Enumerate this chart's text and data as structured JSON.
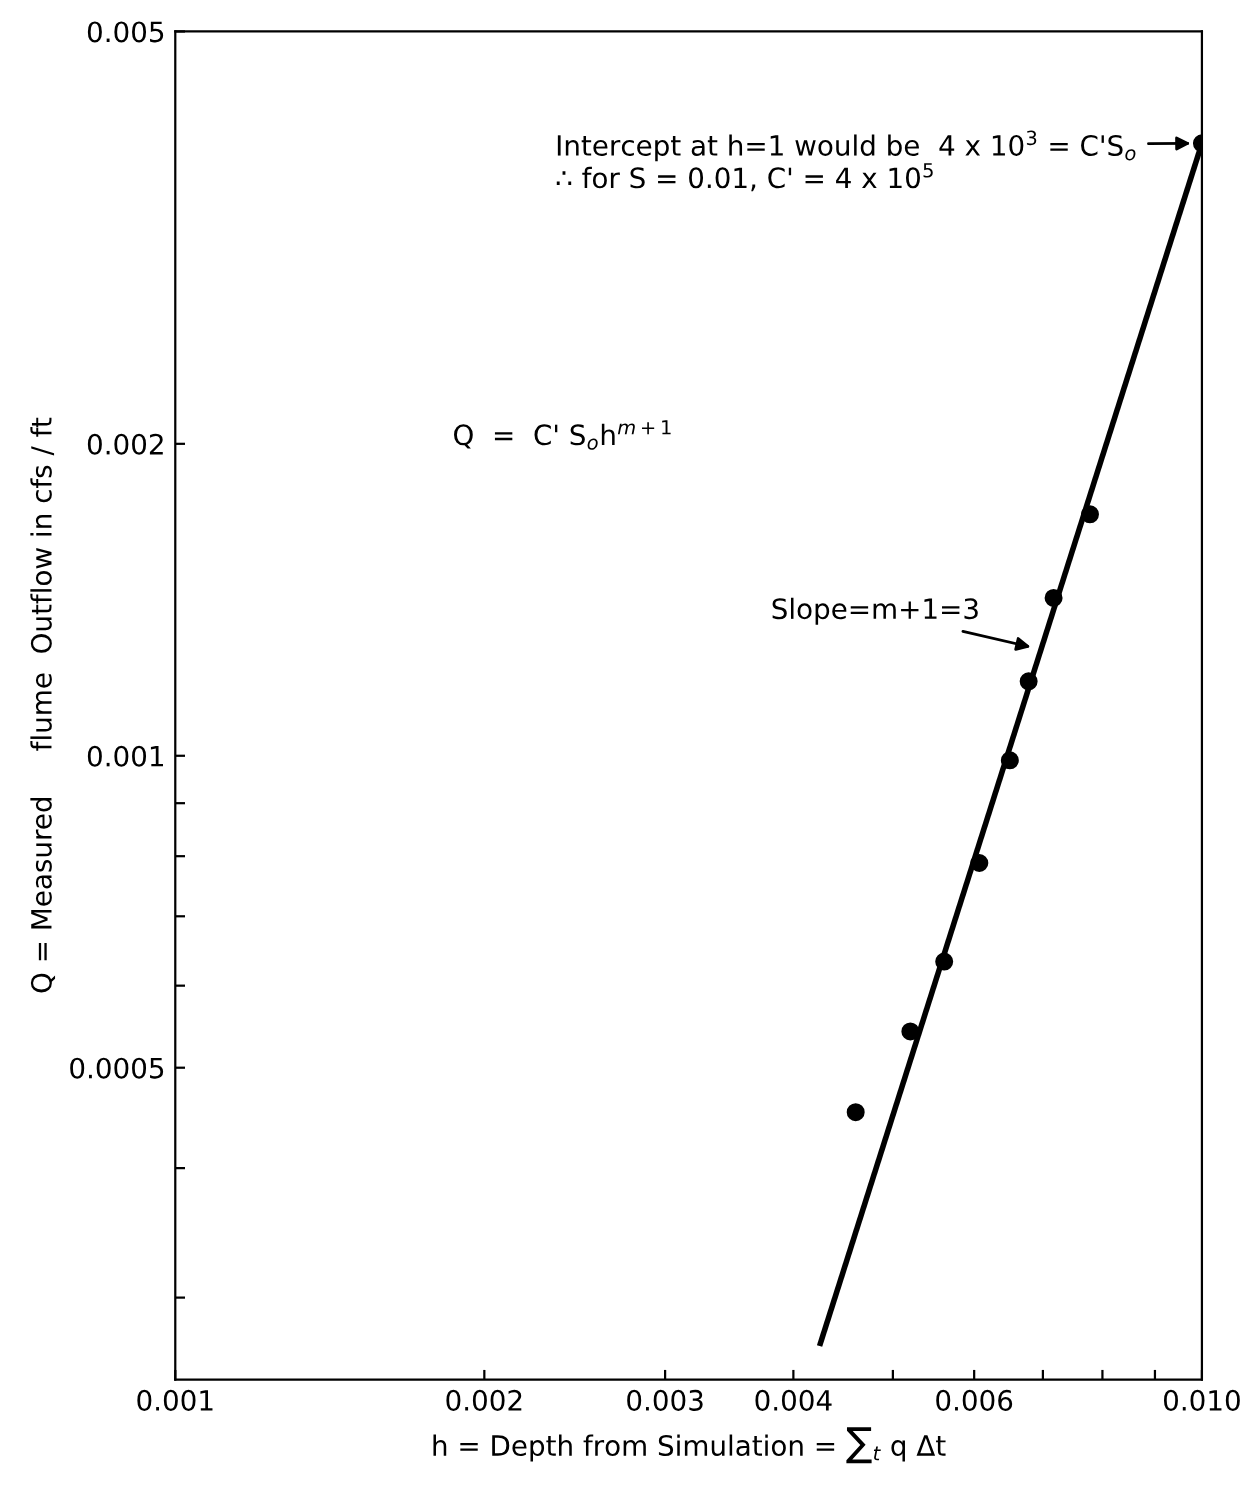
{
  "chart_data": {
    "type": "scatter",
    "log": "xy",
    "grid": false,
    "legend": false,
    "marker": "circle",
    "xlabel": "h = Depth from Simulation = ∑$_{t}$ q Δt",
    "ylabel": "Q = Measured     flume  Outflow in cfs / ft",
    "xlim": [
      0.001,
      0.01
    ],
    "ylim": [
      0.00025,
      0.005
    ],
    "xticks": [
      0.001,
      0.002,
      0.003,
      0.004,
      {
        "value": 0.005,
        "label": null
      },
      0.006,
      {
        "value": 0.007,
        "label": null
      },
      {
        "value": 0.008,
        "label": null
      },
      {
        "value": 0.009,
        "label": null
      },
      {
        "value": 0.01,
        "label": "0.010"
      }
    ],
    "yticks": [
      {
        "value": 0.0003,
        "label": null
      },
      {
        "value": 0.0004,
        "label": null
      },
      0.0005,
      {
        "value": 0.0006,
        "label": null
      },
      {
        "value": 0.0007,
        "label": null
      },
      {
        "value": 0.0008,
        "label": null
      },
      {
        "value": 0.0009,
        "label": null
      },
      0.001,
      0.002,
      0.005
    ],
    "series": [
      {
        "color": "#000000",
        "x": [
          0.0046,
          0.0052,
          0.00561,
          0.00607,
          0.0065,
          0.00678,
          0.00717,
          0.00778,
          0.01
        ],
        "values": [
          0.000453,
          0.000542,
          0.000633,
          0.000788,
          0.00099,
          0.00118,
          0.00142,
          0.00171,
          0.0039
        ]
      },
      {
        "type": "line",
        "color": "#000000",
        "marker": "none",
        "line_style": "solid",
        "x": [
          0.00425,
          0.01
        ],
        "values": [
          0.000271,
          0.0039
        ]
      }
    ],
    "annotations": [
      {
        "text": "Intercept at h=1 would be  4 x 10$^{3}$ = C'S$_{o}$",
        "x": 0.01,
        "y": 0.0039
      },
      "∴ for S = 0.01, C' = 4 x 10$^{5}$",
      "Q  =  C' S$_{o}$h$^{m+1}$",
      {
        "text": "Slope=m+1=3",
        "x": 0.00698,
        "y": 0.001266
      }
    ]
  }
}
